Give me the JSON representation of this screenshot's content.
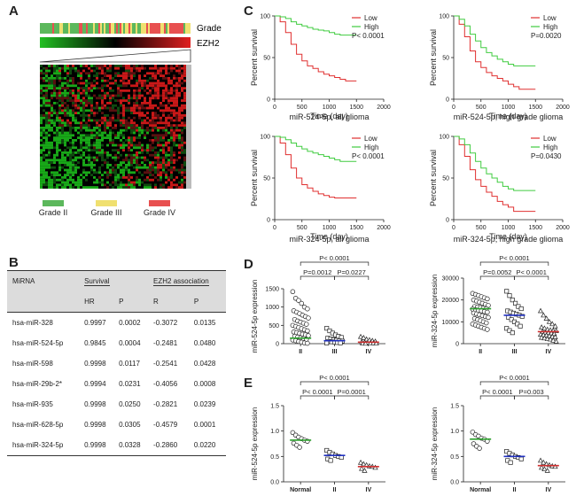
{
  "panel_labels": {
    "A": "A",
    "B": "B",
    "C": "C",
    "D": "D",
    "E": "E"
  },
  "panelA": {
    "grade_label": "Grade",
    "ezh2_label": "EZH2",
    "legend": [
      {
        "label": "Grade II",
        "color": "#5cb85c"
      },
      {
        "label": "Grade III",
        "color": "#f0e070"
      },
      {
        "label": "Grade IV",
        "color": "#e85050"
      }
    ]
  },
  "panelB": {
    "headers": {
      "mirna": "MiRNA",
      "survival": "Survival",
      "ezh2": "EZH2 association",
      "hr": "HR",
      "p": "P",
      "r": "R",
      "p2": "P"
    },
    "rows": [
      {
        "mirna": "hsa-miR-328",
        "hr": "0.9997",
        "p": "0.0002",
        "r": "-0.3072",
        "p2": "0.0135"
      },
      {
        "mirna": "hsa-miR-524-5p",
        "hr": "0.9845",
        "p": "0.0004",
        "r": "-0.2481",
        "p2": "0.0480"
      },
      {
        "mirna": "hsa-miR-598",
        "hr": "0.9998",
        "p": "0.0117",
        "r": "-0.2541",
        "p2": "0.0428"
      },
      {
        "mirna": "hsa-miR-29b-2*",
        "hr": "0.9994",
        "p": "0.0231",
        "r": "-0.4056",
        "p2": "0.0008"
      },
      {
        "mirna": "hsa-miR-935",
        "hr": "0.9998",
        "p": "0.0250",
        "r": "-0.2821",
        "p2": "0.0239"
      },
      {
        "mirna": "hsa-miR-628-5p",
        "hr": "0.9998",
        "p": "0.0305",
        "r": "-0.4579",
        "p2": "0.0001"
      },
      {
        "mirna": "hsa-miR-324-5p",
        "hr": "0.9998",
        "p": "0.0328",
        "r": "-0.2860",
        "p2": "0.0220"
      }
    ]
  },
  "chart_data": [
    {
      "type": "line",
      "id": "C1",
      "title": "miR-524-5p, all glioma",
      "xlabel": "Time (day)",
      "ylabel": "Percent survival",
      "xlim": [
        0,
        2000
      ],
      "ylim": [
        0,
        100
      ],
      "xticks": [
        0,
        500,
        1000,
        1500,
        2000
      ],
      "yticks": [
        0,
        50,
        100
      ],
      "series": [
        {
          "name": "Low",
          "color": "#e03030",
          "x": [
            0,
            100,
            200,
            300,
            400,
            500,
            600,
            700,
            800,
            900,
            1000,
            1100,
            1200,
            1300,
            1400,
            1500
          ],
          "y": [
            100,
            93,
            80,
            66,
            54,
            46,
            40,
            37,
            33,
            30,
            28,
            26,
            24,
            22,
            22,
            22
          ]
        },
        {
          "name": "High",
          "color": "#40cc40",
          "x": [
            0,
            100,
            200,
            300,
            400,
            500,
            600,
            700,
            800,
            900,
            1000,
            1100,
            1200,
            1500
          ],
          "y": [
            100,
            99,
            97,
            93,
            90,
            88,
            86,
            84,
            83,
            82,
            80,
            78,
            77,
            77
          ]
        }
      ],
      "annotation": "P< 0.0001"
    },
    {
      "type": "line",
      "id": "C2",
      "title": "miR-524-5p, high grade glioma",
      "xlabel": "Time (day)",
      "ylabel": "Percent survival",
      "xlim": [
        0,
        2000
      ],
      "ylim": [
        0,
        100
      ],
      "xticks": [
        0,
        500,
        1000,
        1500,
        2000
      ],
      "yticks": [
        0,
        50,
        100
      ],
      "series": [
        {
          "name": "Low",
          "color": "#e03030",
          "x": [
            0,
            100,
            200,
            300,
            400,
            500,
            600,
            700,
            800,
            900,
            1000,
            1100,
            1200,
            1500
          ],
          "y": [
            100,
            90,
            75,
            58,
            45,
            38,
            32,
            28,
            25,
            22,
            18,
            15,
            12,
            12
          ]
        },
        {
          "name": "High",
          "color": "#40cc40",
          "x": [
            0,
            100,
            200,
            300,
            400,
            500,
            600,
            700,
            800,
            900,
            1000,
            1100,
            1200,
            1500
          ],
          "y": [
            100,
            96,
            88,
            78,
            70,
            62,
            56,
            52,
            48,
            45,
            42,
            40,
            40,
            40
          ]
        }
      ],
      "annotation": "P=0.0020"
    },
    {
      "type": "line",
      "id": "C3",
      "title": "miR-324-5p, all glioma",
      "xlabel": "Time (day)",
      "ylabel": "Percent survival",
      "xlim": [
        0,
        2000
      ],
      "ylim": [
        0,
        100
      ],
      "xticks": [
        0,
        500,
        1000,
        1500,
        2000
      ],
      "yticks": [
        0,
        50,
        100
      ],
      "series": [
        {
          "name": "Low",
          "color": "#e03030",
          "x": [
            0,
            100,
            200,
            300,
            400,
            500,
            600,
            700,
            800,
            900,
            1000,
            1100,
            1200,
            1500
          ],
          "y": [
            100,
            92,
            78,
            62,
            50,
            42,
            38,
            34,
            31,
            29,
            27,
            26,
            26,
            26
          ]
        },
        {
          "name": "High",
          "color": "#40cc40",
          "x": [
            0,
            100,
            200,
            300,
            400,
            500,
            600,
            700,
            800,
            900,
            1000,
            1100,
            1200,
            1500
          ],
          "y": [
            100,
            99,
            96,
            92,
            88,
            85,
            82,
            80,
            78,
            76,
            74,
            72,
            70,
            70
          ]
        }
      ],
      "annotation": "P< 0.0001"
    },
    {
      "type": "line",
      "id": "C4",
      "title": "miR-324-5p, high grade glioma",
      "xlabel": "Time (day)",
      "ylabel": "Percent survival",
      "xlim": [
        0,
        2000
      ],
      "ylim": [
        0,
        100
      ],
      "xticks": [
        0,
        500,
        1000,
        1500,
        2000
      ],
      "yticks": [
        0,
        50,
        100
      ],
      "series": [
        {
          "name": "Low",
          "color": "#e03030",
          "x": [
            0,
            100,
            200,
            300,
            400,
            500,
            600,
            700,
            800,
            900,
            1000,
            1100,
            1500
          ],
          "y": [
            100,
            90,
            76,
            60,
            48,
            40,
            33,
            28,
            22,
            18,
            15,
            10,
            10
          ]
        },
        {
          "name": "High",
          "color": "#40cc40",
          "x": [
            0,
            100,
            200,
            300,
            400,
            500,
            600,
            700,
            800,
            900,
            1000,
            1100,
            1200,
            1500
          ],
          "y": [
            100,
            97,
            90,
            80,
            70,
            62,
            55,
            50,
            45,
            40,
            37,
            35,
            35,
            35
          ]
        }
      ],
      "annotation": "P=0.0430"
    },
    {
      "type": "scatter",
      "id": "D1",
      "ylabel": "miR-524-5p expression",
      "ylim": [
        0,
        1500
      ],
      "yticks": [
        0,
        500,
        1000,
        1500
      ],
      "categories": [
        "II",
        "III",
        "IV"
      ],
      "medians": [
        150,
        80,
        40
      ],
      "median_colors": [
        "#2ca02c",
        "#2030c0",
        "#d03030"
      ],
      "groups": [
        {
          "marker": "circle",
          "values": [
            1420,
            1240,
            1180,
            1100,
            1000,
            950,
            900,
            860,
            820,
            780,
            740,
            700,
            660,
            620,
            590,
            560,
            530,
            500,
            470,
            440,
            410,
            380,
            350,
            320,
            300,
            280,
            260,
            240,
            220,
            200,
            180,
            160,
            140,
            120,
            100,
            80,
            60,
            40,
            20,
            10
          ]
        },
        {
          "marker": "square",
          "values": [
            420,
            350,
            290,
            240,
            200,
            170,
            150,
            130,
            110,
            95,
            80,
            70,
            60,
            50,
            40,
            30,
            20,
            15
          ]
        },
        {
          "marker": "triangle",
          "values": [
            190,
            160,
            120,
            100,
            80,
            60,
            45,
            35,
            25,
            20,
            15,
            10,
            8,
            5
          ]
        }
      ],
      "brackets": [
        {
          "from": "II",
          "to": "IV",
          "label": "P< 0.0001"
        },
        {
          "from": "II",
          "to": "III",
          "label": "P=0.0012"
        },
        {
          "from": "III",
          "to": "IV",
          "label": "P=0.0227"
        }
      ]
    },
    {
      "type": "scatter",
      "id": "D2",
      "ylabel": "miR-324-5p expression",
      "ylim": [
        0,
        30000
      ],
      "yticks": [
        0,
        10000,
        20000,
        30000
      ],
      "categories": [
        "II",
        "III",
        "IV"
      ],
      "medians": [
        16000,
        13000,
        5500
      ],
      "median_colors": [
        "#2ca02c",
        "#2030c0",
        "#d03030"
      ],
      "groups": [
        {
          "marker": "circle",
          "values": [
            23000,
            22500,
            22000,
            21500,
            21000,
            20500,
            20000,
            19500,
            19000,
            18500,
            18000,
            17500,
            17000,
            16800,
            16500,
            16200,
            16000,
            15800,
            15500,
            15200,
            15000,
            14700,
            14400,
            14000,
            13600,
            13200,
            12800,
            12400,
            12000,
            11500,
            11000,
            10500,
            10000,
            9500,
            9000,
            8500,
            8000,
            7500,
            7000,
            6500
          ]
        },
        {
          "marker": "square",
          "values": [
            24000,
            22000,
            20000,
            18500,
            17000,
            16000,
            15000,
            14500,
            14000,
            13500,
            13000,
            12500,
            12000,
            11000,
            10000,
            9000,
            8000,
            7000,
            6000,
            5000
          ]
        },
        {
          "marker": "triangle",
          "values": [
            15000,
            13000,
            11500,
            10000,
            9000,
            8000,
            7500,
            7000,
            6500,
            6200,
            6000,
            5800,
            5500,
            5200,
            5000,
            4800,
            4500,
            4200,
            4000,
            3800,
            3500,
            3200,
            3000,
            2800,
            2500,
            2200,
            2000,
            1500,
            1000
          ]
        }
      ],
      "brackets": [
        {
          "from": "II",
          "to": "IV",
          "label": "P< 0.0001"
        },
        {
          "from": "II",
          "to": "III",
          "label": "P=0.0052"
        },
        {
          "from": "III",
          "to": "IV",
          "label": "P< 0.0001"
        }
      ]
    },
    {
      "type": "scatter",
      "id": "E1",
      "ylabel": "miR-524-5p expression",
      "ylim": [
        0,
        1.5
      ],
      "yticks": [
        0,
        0.5,
        1.0,
        1.5
      ],
      "categories": [
        "Normal",
        "II",
        "IV"
      ],
      "medians": [
        0.82,
        0.52,
        0.3
      ],
      "median_colors": [
        "#2ca02c",
        "#2030c0",
        "#d03030"
      ],
      "groups": [
        {
          "marker": "circle",
          "values": [
            0.97,
            0.92,
            0.88,
            0.85,
            0.82,
            0.8,
            0.76,
            0.72,
            0.68
          ]
        },
        {
          "marker": "square",
          "values": [
            0.62,
            0.58,
            0.55,
            0.52,
            0.5,
            0.48,
            0.45,
            0.42
          ]
        },
        {
          "marker": "triangle",
          "values": [
            0.38,
            0.35,
            0.33,
            0.31,
            0.3,
            0.28,
            0.26,
            0.22
          ]
        }
      ],
      "brackets": [
        {
          "from": "Normal",
          "to": "IV",
          "label": "P< 0.0001"
        },
        {
          "from": "Normal",
          "to": "II",
          "label": "P< 0.0001"
        },
        {
          "from": "II",
          "to": "IV",
          "label": "P=0.0001"
        }
      ]
    },
    {
      "type": "scatter",
      "id": "E2",
      "ylabel": "miR-324-5p expression",
      "ylim": [
        0,
        1.5
      ],
      "yticks": [
        0,
        0.5,
        1.0,
        1.5
      ],
      "categories": [
        "Normal",
        "II",
        "IV"
      ],
      "medians": [
        0.84,
        0.5,
        0.32
      ],
      "median_colors": [
        "#2ca02c",
        "#2030c0",
        "#d03030"
      ],
      "groups": [
        {
          "marker": "circle",
          "values": [
            0.98,
            0.93,
            0.9,
            0.86,
            0.84,
            0.8,
            0.75,
            0.7,
            0.66
          ]
        },
        {
          "marker": "square",
          "values": [
            0.6,
            0.56,
            0.53,
            0.5,
            0.48,
            0.45,
            0.42,
            0.38
          ]
        },
        {
          "marker": "triangle",
          "values": [
            0.42,
            0.38,
            0.35,
            0.33,
            0.31,
            0.3,
            0.28,
            0.25,
            0.22
          ]
        }
      ],
      "brackets": [
        {
          "from": "Normal",
          "to": "IV",
          "label": "P< 0.0001"
        },
        {
          "from": "Normal",
          "to": "II",
          "label": "P< 0.0001"
        },
        {
          "from": "II",
          "to": "IV",
          "label": "P=0.003"
        }
      ]
    }
  ]
}
